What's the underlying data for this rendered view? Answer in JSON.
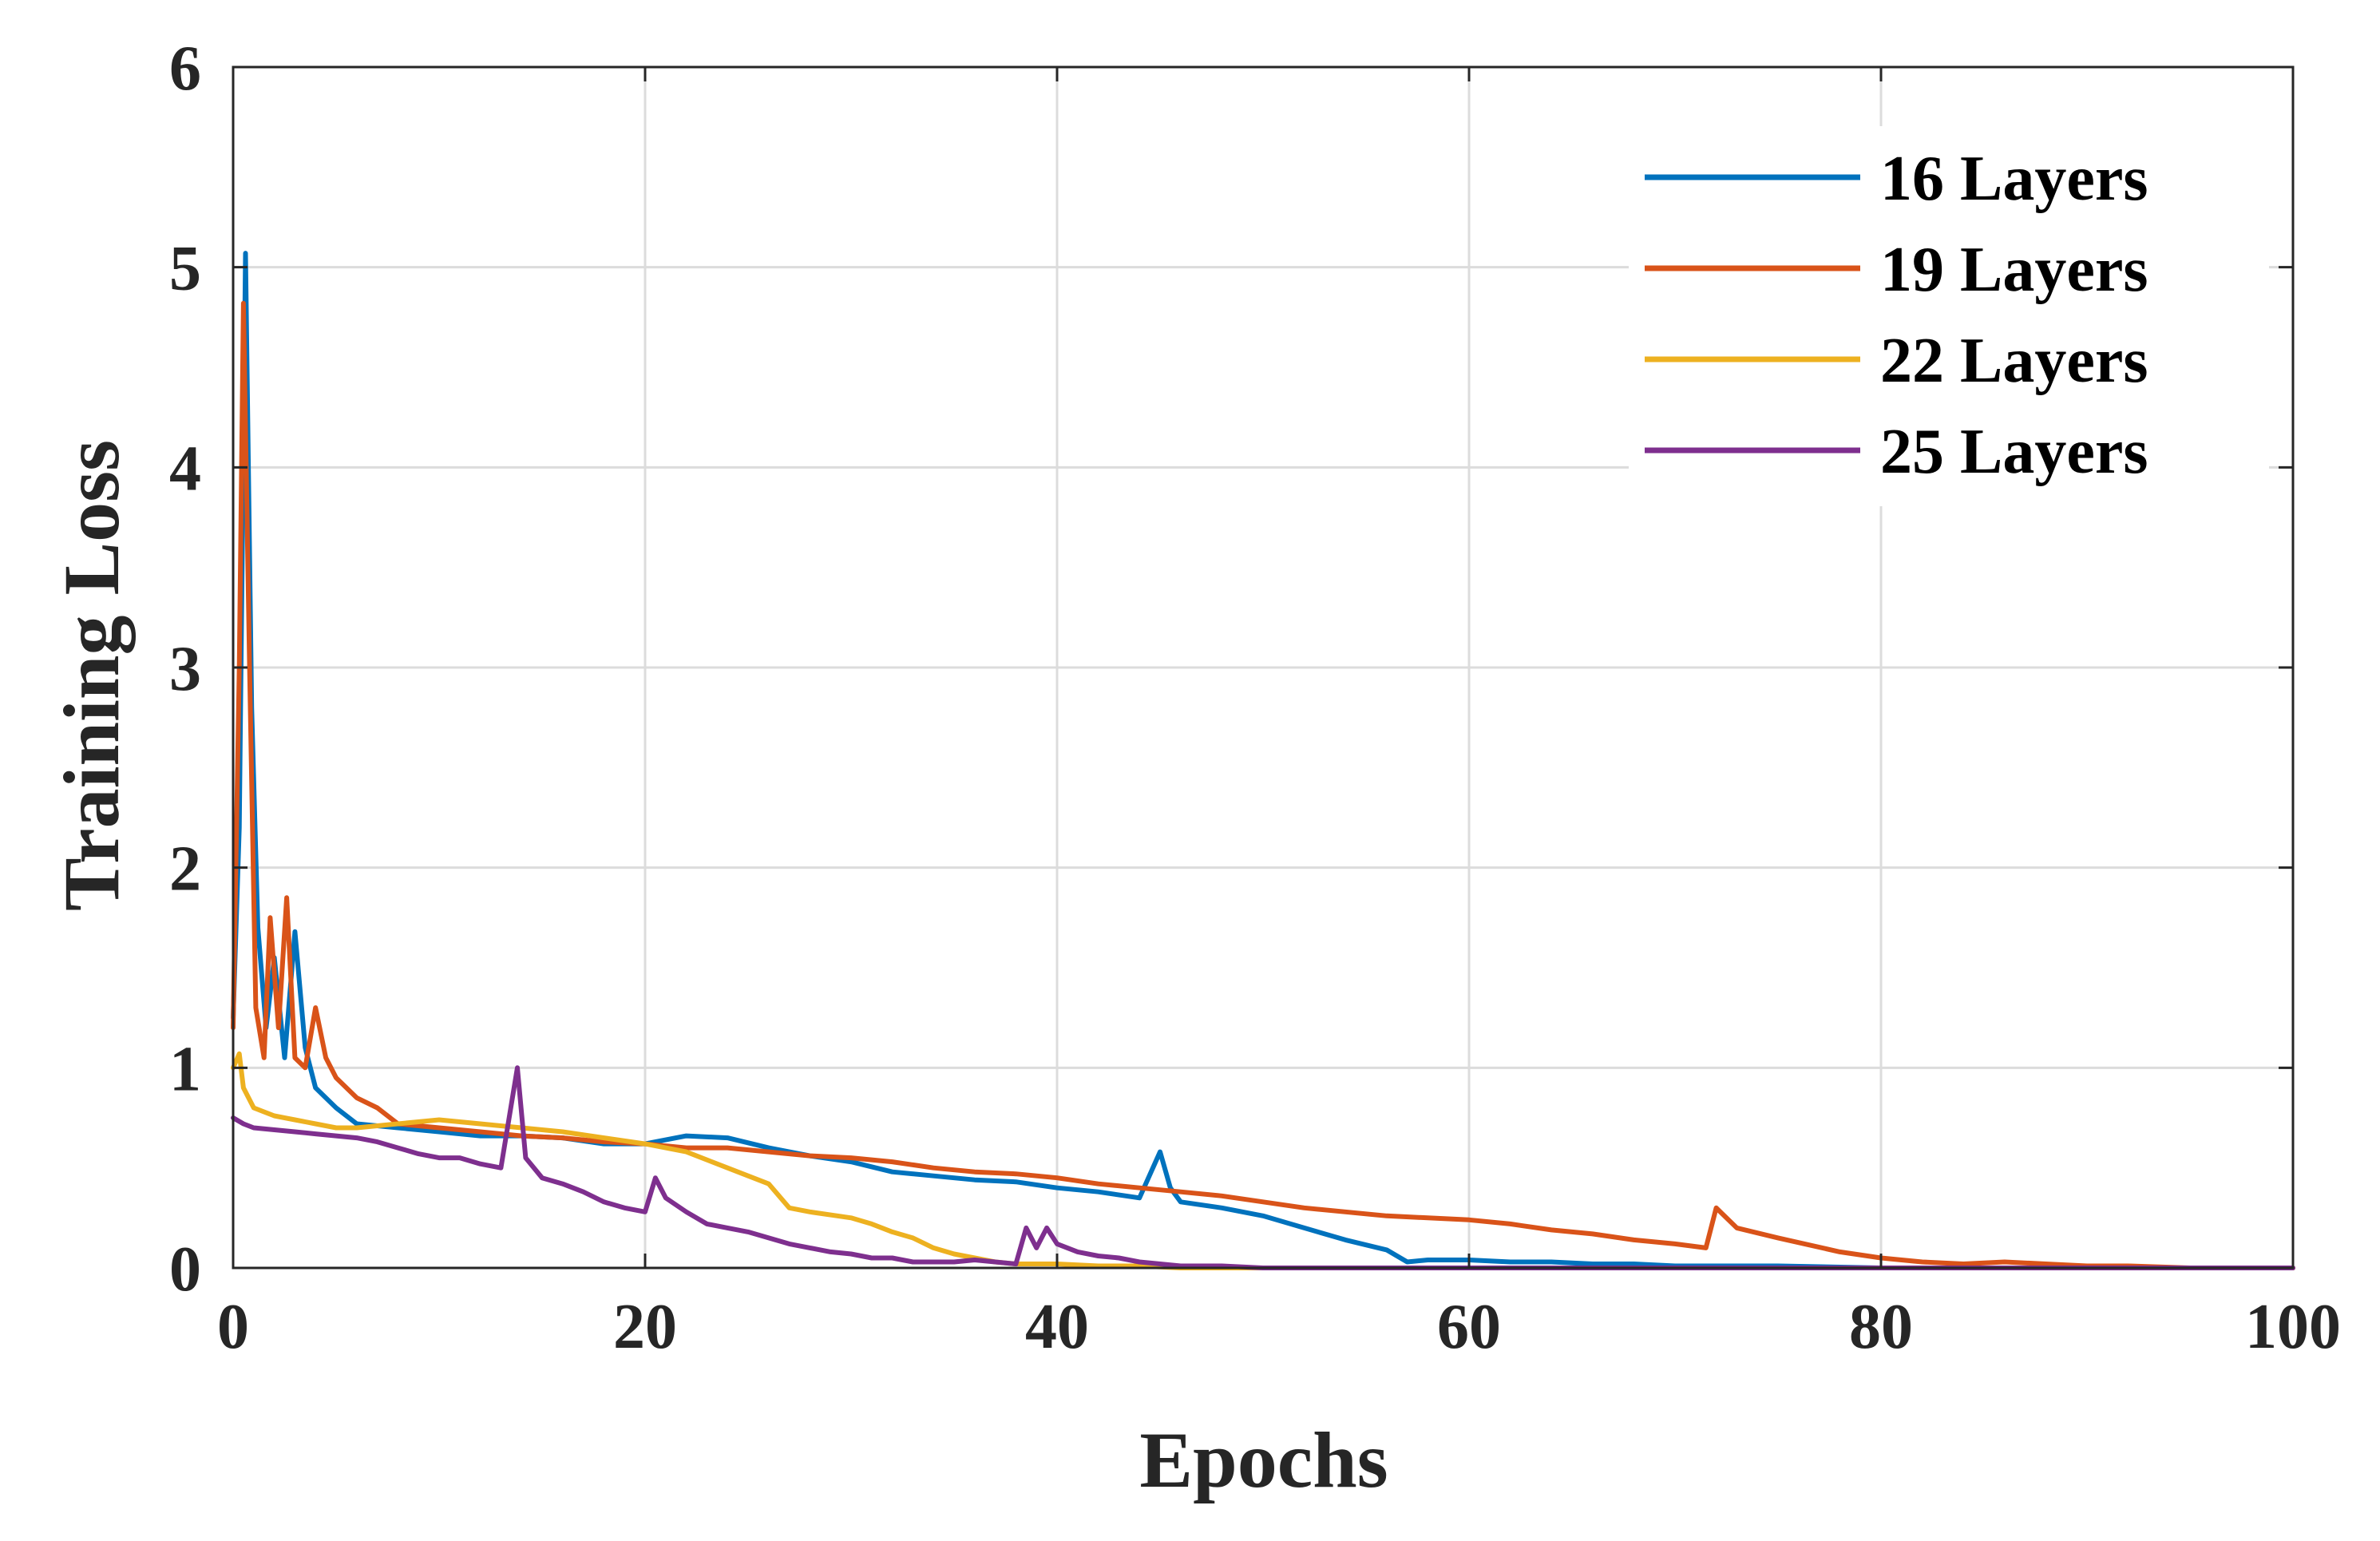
{
  "chart_data": {
    "type": "line",
    "title": "",
    "xlabel": "Epochs",
    "ylabel": "Training Loss",
    "xlim": [
      0,
      100
    ],
    "ylim": [
      0,
      6
    ],
    "xticks": [
      0,
      20,
      40,
      60,
      80,
      100
    ],
    "yticks": [
      0,
      1,
      2,
      3,
      4,
      5,
      6
    ],
    "xtick_labels": [
      "0",
      "20",
      "40",
      "60",
      "80",
      "100"
    ],
    "ytick_labels": [
      "0",
      "1",
      "2",
      "3",
      "4",
      "5",
      "6"
    ],
    "grid": true,
    "legend_position": "top-right",
    "series": [
      {
        "name": "16 Layers",
        "color": "#0072BD",
        "x": [
          0,
          0.3,
          0.6,
          0.9,
          1.2,
          1.6,
          2.0,
          2.5,
          3.0,
          3.5,
          4.0,
          5.0,
          6,
          8,
          10,
          12,
          14,
          16,
          18,
          20,
          22,
          24,
          26,
          28,
          30,
          32,
          34,
          36,
          38,
          40,
          42,
          44,
          45,
          45.5,
          46,
          48,
          50,
          52,
          54,
          56,
          57,
          58,
          60,
          62,
          64,
          66,
          68,
          70,
          72,
          75,
          80,
          85,
          90,
          95,
          100
        ],
        "y": [
          1.25,
          2.2,
          5.07,
          2.8,
          1.7,
          1.2,
          1.55,
          1.05,
          1.68,
          1.1,
          0.9,
          0.8,
          0.72,
          0.7,
          0.68,
          0.66,
          0.66,
          0.65,
          0.62,
          0.62,
          0.66,
          0.65,
          0.6,
          0.56,
          0.53,
          0.48,
          0.46,
          0.44,
          0.43,
          0.4,
          0.38,
          0.35,
          0.58,
          0.4,
          0.33,
          0.3,
          0.26,
          0.2,
          0.14,
          0.09,
          0.03,
          0.04,
          0.04,
          0.03,
          0.03,
          0.02,
          0.02,
          0.01,
          0.01,
          0.01,
          0.0,
          0.0,
          0.0,
          0.0,
          0.0
        ]
      },
      {
        "name": "19 Layers",
        "color": "#D95319",
        "x": [
          0,
          0.3,
          0.5,
          0.8,
          1.1,
          1.5,
          1.8,
          2.2,
          2.6,
          3.0,
          3.5,
          4.0,
          4.5,
          5.0,
          6,
          7,
          8,
          10,
          12,
          14,
          16,
          18,
          20,
          22,
          24,
          26,
          28,
          30,
          32,
          34,
          36,
          38,
          40,
          42,
          44,
          46,
          48,
          50,
          52,
          54,
          56,
          58,
          60,
          62,
          64,
          66,
          68,
          70,
          71.5,
          72,
          73,
          75,
          78,
          80,
          82,
          84,
          86,
          88,
          90,
          92,
          95,
          100
        ],
        "y": [
          1.2,
          3.0,
          4.82,
          3.0,
          1.3,
          1.05,
          1.75,
          1.2,
          1.85,
          1.05,
          1.0,
          1.3,
          1.05,
          0.95,
          0.85,
          0.8,
          0.72,
          0.7,
          0.68,
          0.66,
          0.65,
          0.63,
          0.62,
          0.6,
          0.6,
          0.58,
          0.56,
          0.55,
          0.53,
          0.5,
          0.48,
          0.47,
          0.45,
          0.42,
          0.4,
          0.38,
          0.36,
          0.33,
          0.3,
          0.28,
          0.26,
          0.25,
          0.24,
          0.22,
          0.19,
          0.17,
          0.14,
          0.12,
          0.1,
          0.3,
          0.2,
          0.15,
          0.08,
          0.05,
          0.03,
          0.02,
          0.03,
          0.02,
          0.01,
          0.01,
          0.0,
          0.0
        ]
      },
      {
        "name": "22 Layers",
        "color": "#EDB120",
        "x": [
          0,
          0.3,
          0.5,
          1,
          2,
          3,
          4,
          5,
          6,
          8,
          10,
          12,
          14,
          16,
          18,
          20,
          22,
          24,
          26,
          27,
          28,
          30,
          31,
          32,
          33,
          34,
          35,
          36,
          37,
          38,
          40,
          42,
          44,
          46,
          48,
          50,
          55,
          60,
          70,
          80,
          90,
          100
        ],
        "y": [
          1.0,
          1.07,
          0.9,
          0.8,
          0.76,
          0.74,
          0.72,
          0.7,
          0.7,
          0.72,
          0.74,
          0.72,
          0.7,
          0.68,
          0.65,
          0.62,
          0.58,
          0.5,
          0.42,
          0.3,
          0.28,
          0.25,
          0.22,
          0.18,
          0.15,
          0.1,
          0.07,
          0.05,
          0.03,
          0.02,
          0.02,
          0.01,
          0.01,
          0.0,
          0.0,
          0.0,
          0.0,
          0.0,
          0.0,
          0.0,
          0.0,
          0.0
        ]
      },
      {
        "name": "25 Layers",
        "color": "#7E2F8E",
        "x": [
          0,
          0.5,
          1,
          2,
          3,
          4,
          5,
          6,
          7,
          8,
          9,
          10,
          11,
          12,
          13,
          13.8,
          14.2,
          15,
          16,
          17,
          18,
          19,
          20,
          20.5,
          21,
          22,
          23,
          24,
          25,
          26,
          27,
          28,
          29,
          30,
          31,
          32,
          33,
          34,
          35,
          36,
          37,
          38,
          38.5,
          39,
          39.5,
          40,
          41,
          42,
          43,
          44,
          45,
          46,
          48,
          50,
          60,
          70,
          80,
          90,
          100
        ],
        "y": [
          0.75,
          0.72,
          0.7,
          0.69,
          0.68,
          0.67,
          0.66,
          0.65,
          0.63,
          0.6,
          0.57,
          0.55,
          0.55,
          0.52,
          0.5,
          1.0,
          0.55,
          0.45,
          0.42,
          0.38,
          0.33,
          0.3,
          0.28,
          0.45,
          0.35,
          0.28,
          0.22,
          0.2,
          0.18,
          0.15,
          0.12,
          0.1,
          0.08,
          0.07,
          0.05,
          0.05,
          0.03,
          0.03,
          0.03,
          0.04,
          0.03,
          0.02,
          0.2,
          0.1,
          0.2,
          0.12,
          0.08,
          0.06,
          0.05,
          0.03,
          0.02,
          0.01,
          0.01,
          0.0,
          0.0,
          0.0,
          0.0,
          0.0,
          0.0
        ]
      }
    ]
  }
}
